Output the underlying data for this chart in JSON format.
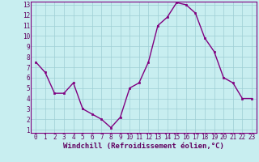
{
  "hours": [
    0,
    1,
    2,
    3,
    4,
    5,
    6,
    7,
    8,
    9,
    10,
    11,
    12,
    13,
    14,
    15,
    16,
    17,
    18,
    19,
    20,
    21,
    22,
    23
  ],
  "values": [
    7.5,
    6.5,
    4.5,
    4.5,
    5.5,
    3.0,
    2.5,
    2.0,
    1.2,
    2.2,
    5.0,
    5.5,
    7.5,
    11.0,
    11.8,
    13.2,
    13.0,
    12.2,
    9.8,
    8.5,
    6.0,
    5.5,
    4.0,
    4.0
  ],
  "line_color": "#800080",
  "marker": "s",
  "marker_size": 2,
  "bg_color": "#c8eef0",
  "grid_color": "#9ecdd4",
  "xlabel": "Windchill (Refroidissement éolien,°C)",
  "ylabel": "",
  "ylim_min": 1,
  "ylim_max": 13,
  "xlim_min": 0,
  "xlim_max": 23,
  "yticks": [
    1,
    2,
    3,
    4,
    5,
    6,
    7,
    8,
    9,
    10,
    11,
    12,
    13
  ],
  "xticks": [
    0,
    1,
    2,
    3,
    4,
    5,
    6,
    7,
    8,
    9,
    10,
    11,
    12,
    13,
    14,
    15,
    16,
    17,
    18,
    19,
    20,
    21,
    22,
    23
  ],
  "tick_fontsize": 5.5,
  "xlabel_fontsize": 6.5,
  "line_width": 1.0,
  "spine_color": "#800080",
  "tick_color": "#600060"
}
